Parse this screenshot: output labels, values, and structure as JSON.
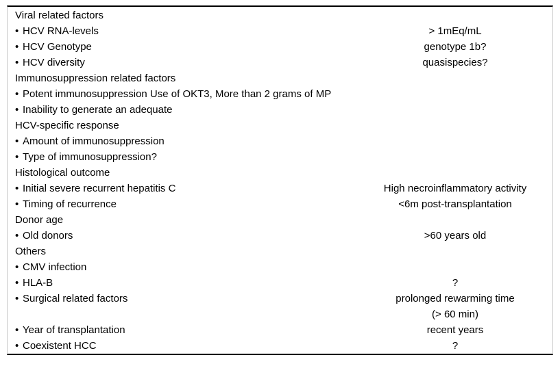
{
  "table": {
    "bullet_char": "•",
    "text_color": "#000000",
    "rule_color": "#000000",
    "border_color": "#c8c8c8",
    "rows": [
      {
        "bullet": false,
        "label": "Viral related factors",
        "value": ""
      },
      {
        "bullet": true,
        "label": "HCV RNA-levels",
        "value": "> 1mEq/mL"
      },
      {
        "bullet": true,
        "label": "HCV Genotype",
        "value": "genotype 1b?"
      },
      {
        "bullet": true,
        "label": "HCV diversity",
        "value": "quasispecies?"
      },
      {
        "bullet": false,
        "label": "Immunosuppression related factors",
        "value": ""
      },
      {
        "bullet": true,
        "label": "Potent immunosuppression Use of OKT3, More than 2 grams of MP",
        "value": ""
      },
      {
        "bullet": true,
        "label": "Inability to generate an adequate",
        "value": ""
      },
      {
        "bullet": false,
        "label": "HCV-specific response",
        "value": ""
      },
      {
        "bullet": true,
        "label": "Amount of immunosuppression",
        "value": ""
      },
      {
        "bullet": true,
        "label": "Type of immunosuppression?",
        "value": ""
      },
      {
        "bullet": false,
        "label": "Histological outcome",
        "value": ""
      },
      {
        "bullet": true,
        "label": "Initial severe recurrent hepatitis C",
        "value": "High necroinflammatory activity"
      },
      {
        "bullet": true,
        "label": "Timing of recurrence",
        "value": "<6m post-transplantation"
      },
      {
        "bullet": false,
        "label": "Donor age",
        "value": ""
      },
      {
        "bullet": true,
        "label": "Old donors",
        "value": ">60 years old"
      },
      {
        "bullet": false,
        "label": "Others",
        "value": ""
      },
      {
        "bullet": true,
        "label": "CMV infection",
        "value": ""
      },
      {
        "bullet": true,
        "label": "HLA-B",
        "value": "?"
      },
      {
        "bullet": true,
        "label": "Surgical related factors",
        "value": "prolonged rewarming time"
      },
      {
        "bullet": false,
        "label": "",
        "value": "(> 60 min)"
      },
      {
        "bullet": true,
        "label": "Year of transplantation",
        "value": "recent years"
      },
      {
        "bullet": true,
        "label": "Coexistent HCC",
        "value": "?"
      }
    ]
  }
}
